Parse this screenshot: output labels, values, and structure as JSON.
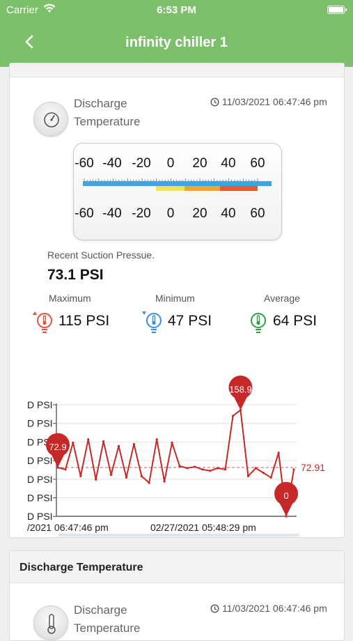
{
  "status_bar": {
    "carrier": "Carrier",
    "time": "6:53 PM"
  },
  "nav": {
    "title": "infinity chiller 1",
    "back_icon": "chevron-left-icon"
  },
  "sensor1": {
    "name_line1": "Discharge",
    "name_line2": "Temperature",
    "timestamp": "11/03/2021 06:47:46 pm",
    "scale_ticks": [
      "-60",
      "-40",
      "-20",
      "0",
      "20",
      "40",
      "60"
    ],
    "bar_colors": {
      "blue": "#3fa6dd",
      "yellow": "#f4e34a",
      "orange": "#f5a623",
      "red": "#ef5a23"
    },
    "recent_label": "Recent Suction Pressue.",
    "recent_value": "73.1 PSI",
    "stats": {
      "maximum": {
        "label": "Maximum",
        "value": "115 PSI",
        "color": "#e0533d"
      },
      "minimum": {
        "label": "Minimum",
        "value": "47 PSI",
        "color": "#3b8fe0"
      },
      "average": {
        "label": "Average",
        "value": "64 PSI",
        "color": "#2f9e44"
      }
    }
  },
  "chart_data": {
    "type": "line",
    "y_tick_labels": [
      "D PSI",
      "D PSI",
      "D PSI",
      "D PSI",
      "D PSI",
      "D PSI",
      "D PSI"
    ],
    "x_tick_labels": [
      "/2021 06:47:46 pm",
      "02/27/2021 05:48:29 pm"
    ],
    "ylim": [
      0,
      175
    ],
    "series": [
      {
        "values": [
          72.9,
          70,
          110,
          60,
          115,
          55,
          112,
          62,
          105,
          58,
          108,
          60,
          50,
          115,
          52,
          110,
          75,
          72,
          74,
          70,
          68,
          72,
          70,
          150,
          158.9,
          60,
          72,
          65,
          58,
          95,
          0,
          70
        ]
      }
    ],
    "markers": [
      {
        "label": "72.9",
        "value": 72.9,
        "position": "start"
      },
      {
        "label": "158.9",
        "value": 158.9,
        "position": "max"
      },
      {
        "label": "0",
        "value": 0,
        "position": "min"
      }
    ],
    "average_line": {
      "value": 72.91,
      "label": "72.91"
    },
    "line_color": "#c62828"
  },
  "section2": {
    "title": "Discharge Temperature",
    "sensor_name_line1": "Discharge",
    "sensor_name_line2": "Temperature",
    "timestamp": "11/03/2021 06:47:46 pm"
  }
}
